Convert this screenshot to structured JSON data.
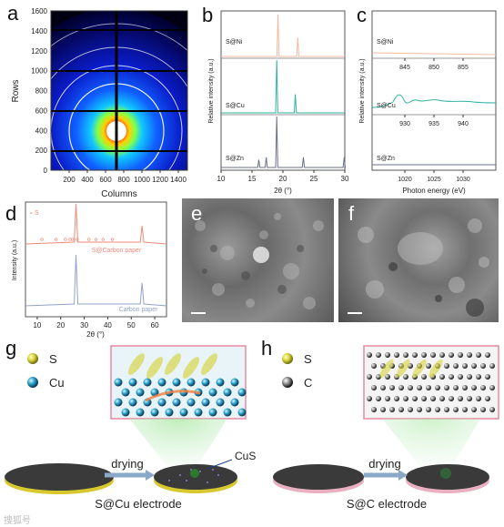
{
  "panels": {
    "a": {
      "label": "a",
      "xlabel": "Columns",
      "ylabel": "Rows",
      "xticks": [
        "200",
        "400",
        "600",
        "800",
        "1000",
        "1200",
        "1400"
      ],
      "yticks": [
        "0",
        "200",
        "400",
        "600",
        "800",
        "1000",
        "1200",
        "1400",
        "1600"
      ]
    },
    "b": {
      "label": "b",
      "xlabel": "2θ (°)",
      "ylabel": "Relative intensity (a.u.)",
      "xticks": [
        "10",
        "15",
        "20",
        "25",
        "30"
      ],
      "series": [
        "S@Ni",
        "S@Cu",
        "S@Zn"
      ]
    },
    "c": {
      "label": "c",
      "xlabel": "Photon energy (eV)",
      "ylabel": "Relative intensity (a.u.)",
      "series": [
        "S@Ni",
        "S@Cu",
        "S@Zn"
      ],
      "ticks_ni": [
        "845",
        "850",
        "855"
      ],
      "ticks_cu": [
        "930",
        "935",
        "940"
      ],
      "ticks_zn": [
        "1020",
        "1025",
        "1030"
      ]
    },
    "d": {
      "label": "d",
      "xlabel": "2θ (°)",
      "ylabel": "Intensity (a.u.)",
      "legend": "S",
      "top_series": "S@Carbon paper",
      "bottom_series": "Carbon paper",
      "xticks": [
        "10",
        "20",
        "30",
        "40",
        "50",
        "60"
      ]
    },
    "e": {
      "label": "e"
    },
    "f": {
      "label": "f"
    },
    "g": {
      "label": "g",
      "legend_s": "S",
      "legend_cu": "Cu",
      "arrow": "drying",
      "cus": "CuS",
      "caption": "S@Cu electrode"
    },
    "h": {
      "label": "h",
      "legend_s": "S",
      "legend_c": "C",
      "arrow": "drying",
      "caption": "S@C electrode"
    }
  },
  "colors": {
    "ni": "#f4b8a0",
    "cu": "#2fb3a3",
    "zn": "#6a6f88",
    "s_carbon": "#f08a7a",
    "carbon": "#8fa4c8",
    "sulfur": "#d7d23a"
  },
  "watermark": "搜狐号",
  "chart_data": [
    {
      "type": "line",
      "title": "",
      "xlabel": "2θ (°)",
      "ylabel": "Relative intensity (a.u.)",
      "xlim": [
        10,
        30
      ],
      "series": [
        {
          "name": "S@Ni",
          "x": [
            19.2,
            22.4
          ],
          "values": [
            1.0,
            0.45
          ]
        },
        {
          "name": "S@Cu",
          "x": [
            19.0,
            22.0
          ],
          "values": [
            1.0,
            0.35
          ]
        },
        {
          "name": "S@Zn",
          "x": [
            16.1,
            17.3,
            19.0,
            23.3,
            29.9
          ],
          "values": [
            0.15,
            0.2,
            1.0,
            0.2,
            0.2
          ]
        }
      ]
    },
    {
      "type": "line",
      "title": "",
      "xlabel": "2θ (°)",
      "ylabel": "Intensity (a.u.)",
      "xlim": [
        5,
        65
      ],
      "series": [
        {
          "name": "S@Carbon paper",
          "x": [
            26.5,
            54.6
          ],
          "values": [
            1.0,
            0.45
          ]
        },
        {
          "name": "Carbon paper",
          "x": [
            26.5,
            54.6
          ],
          "values": [
            1.0,
            0.45
          ]
        }
      ]
    }
  ]
}
